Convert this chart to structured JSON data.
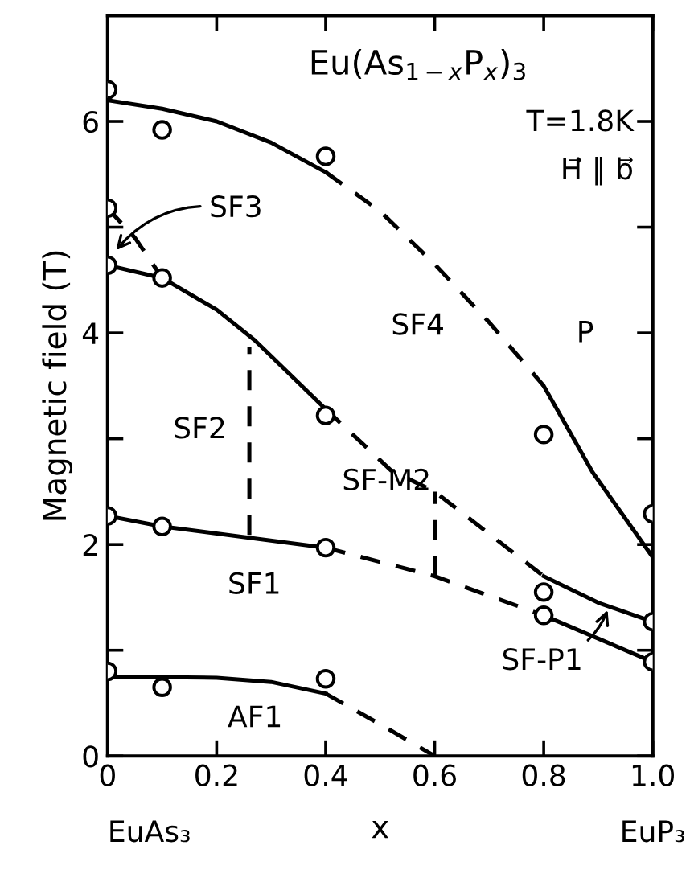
{
  "chart_data": {
    "type": "line",
    "title": "Eu(As$_{1−x}$P$_{x}$)$_{3}$",
    "xlabel": "x",
    "ylabel": "Magnetic field (T)",
    "xlim": [
      0,
      1.0
    ],
    "ylim": [
      0,
      7
    ],
    "xticks": [
      0,
      0.2,
      0.4,
      0.6,
      0.8,
      {
        "value": 1.0,
        "label": "1.0"
      }
    ],
    "yticks": [
      0,
      {
        "value": 1,
        "label": null
      },
      2,
      {
        "value": 3,
        "label": null
      },
      4,
      {
        "value": 5,
        "label": null
      },
      6
    ],
    "grid": false,
    "legend": false,
    "series": [
      {
        "type": "scatter",
        "marker": "circle",
        "color": "#000000",
        "x": [
          0,
          0.1,
          0.4,
          0,
          0,
          0.1,
          0.4,
          0.8,
          1.0,
          0,
          0.1,
          0.4,
          0.8,
          0.8,
          1.0,
          1.0,
          0,
          0.1,
          0.4
        ],
        "values": [
          6.3,
          5.92,
          5.67,
          5.18,
          4.64,
          4.52,
          3.22,
          3.04,
          2.29,
          2.27,
          2.17,
          1.97,
          1.55,
          1.33,
          1.27,
          0.89,
          0.8,
          0.65,
          0.73
        ]
      },
      {
        "line_style": "solid",
        "color": "#000000",
        "x": [
          0,
          0.1,
          0.2,
          0.3,
          0.4
        ],
        "values": [
          6.2,
          6.12,
          6.0,
          5.8,
          5.52
        ]
      },
      {
        "line_style": "dashed",
        "color": "#000000",
        "x": [
          0.4,
          0.5,
          0.6,
          0.7,
          0.8
        ],
        "values": [
          5.52,
          5.15,
          4.65,
          4.1,
          3.5
        ]
      },
      {
        "line_style": "solid",
        "color": "#000000",
        "x": [
          0.8,
          0.89,
          1.0
        ],
        "values": [
          3.5,
          2.68,
          1.88
        ]
      },
      {
        "line_style": "solid",
        "color": "#000000",
        "x": [
          0,
          0.1,
          0.2,
          0.27,
          0.4
        ],
        "values": [
          4.64,
          4.52,
          4.22,
          3.93,
          3.28
        ]
      },
      {
        "line_style": "dashed",
        "color": "#000000",
        "x": [
          0.4,
          0.52,
          0.6,
          0.7,
          0.8
        ],
        "values": [
          3.28,
          2.7,
          2.5,
          2.1,
          1.7
        ]
      },
      {
        "line_style": "solid",
        "color": "#000000",
        "x": [
          0.8,
          0.9,
          1.0
        ],
        "values": [
          1.7,
          1.45,
          1.27
        ]
      },
      {
        "line_style": "solid",
        "color": "#000000",
        "x": [
          0,
          0.1,
          0.4
        ],
        "values": [
          2.27,
          2.17,
          1.97
        ]
      },
      {
        "line_style": "dashed",
        "color": "#000000",
        "x": [
          0.4,
          0.6,
          0.8
        ],
        "values": [
          1.97,
          1.7,
          1.33
        ]
      },
      {
        "line_style": "solid",
        "color": "#000000",
        "x": [
          0.8,
          1.0
        ],
        "values": [
          1.33,
          0.89
        ]
      },
      {
        "line_style": "solid",
        "color": "#000000",
        "x": [
          0,
          0.2,
          0.3,
          0.4
        ],
        "values": [
          0.75,
          0.74,
          0.7,
          0.59
        ]
      },
      {
        "line_style": "dashed",
        "color": "#000000",
        "x": [
          0.4,
          0.5,
          0.6
        ],
        "values": [
          0.59,
          0.3,
          0.0
        ]
      },
      {
        "line_style": "dashed",
        "color": "#000000",
        "x": [
          0,
          0.05,
          0.1
        ],
        "values": [
          5.18,
          4.9,
          4.52
        ]
      },
      {
        "line_style": "dashed",
        "color": "#000000",
        "x": [
          0.26,
          0.26
        ],
        "values": [
          2.09,
          3.87
        ]
      },
      {
        "line_style": "dashed",
        "color": "#000000",
        "x": [
          0.6,
          0.6
        ],
        "values": [
          1.7,
          2.5
        ]
      }
    ],
    "annotations": [
      {
        "text": "SF3",
        "x": 0.01,
        "y": 4.75
      },
      {
        "text": "SF-P1",
        "x": 0.92,
        "y": 1.42
      },
      "SF4",
      "P",
      "SF2",
      "SF-M2",
      "SF1",
      "AF1",
      "T=1.8K",
      "H⃗ ∥ b⃗",
      "EuAs₃",
      "EuP₃"
    ]
  }
}
